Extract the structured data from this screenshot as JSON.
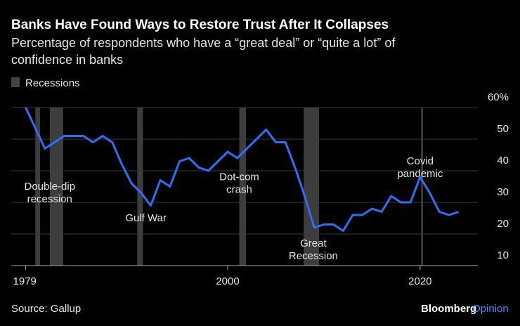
{
  "chart_data": {
    "type": "line",
    "title": "Banks Have Found Ways to Restore Trust After It Collapses",
    "subtitle": [
      "Percentage of respondents who have a “great deal” or “quite a lot” of",
      "confidence in banks"
    ],
    "legend_label": "Recessions",
    "recessions": [
      [
        1980.0,
        1980.5
      ],
      [
        1981.5,
        1982.9
      ],
      [
        1990.6,
        1991.2
      ],
      [
        2001.2,
        2001.9
      ],
      [
        2007.9,
        2009.5
      ],
      [
        2020.1,
        2020.3
      ]
    ],
    "x": [
      1979,
      1981,
      1983,
      1984,
      1985,
      1986,
      1987,
      1988,
      1989,
      1990,
      1991,
      1992,
      1993,
      1994,
      1995,
      1996,
      1997,
      1998,
      1999,
      2000,
      2001,
      2002,
      2003,
      2004,
      2005,
      2006,
      2007,
      2008,
      2009,
      2010,
      2011,
      2012,
      2013,
      2014,
      2015,
      2016,
      2017,
      2018,
      2019,
      2020,
      2021,
      2022,
      2023,
      2024
    ],
    "series": [
      {
        "name": "Confidence in banks",
        "color": "#2f6ff5",
        "values": [
          60,
          47,
          51,
          51,
          51,
          49,
          51,
          49,
          42,
          36,
          33,
          29,
          37,
          35,
          43,
          44,
          41,
          40,
          43,
          46,
          44,
          47,
          50,
          53,
          49,
          49,
          41,
          32,
          22,
          23,
          23,
          21,
          26,
          26,
          28,
          27,
          32,
          30,
          30,
          38,
          33,
          27,
          26,
          27
        ]
      }
    ],
    "xlim": [
      1977.5,
      2026
    ],
    "xticks": [
      1979,
      2000,
      2020
    ],
    "ylim": [
      10,
      60
    ],
    "yticks": [
      10,
      20,
      30,
      40,
      {
        "value": 60,
        "label": "60%"
      },
      50
    ],
    "grid": true,
    "annotations": [
      {
        "lines": [
          "Double-dip",
          "recession"
        ],
        "x": 1981.5,
        "y": 34
      },
      {
        "lines": [
          "Gulf War"
        ],
        "x": 1991.5,
        "y": 24
      },
      {
        "lines": [
          "Dot-com",
          "crash"
        ],
        "x": 2001.2,
        "y": 37
      },
      {
        "lines": [
          "Great",
          "Recession"
        ],
        "x": 2008.9,
        "y": 16
      },
      {
        "lines": [
          "Covid",
          "pandemic"
        ],
        "x": 2020,
        "y": 42
      }
    ],
    "source": "Source: Gallup",
    "brand": [
      "Bloomberg",
      "Opinion"
    ]
  }
}
